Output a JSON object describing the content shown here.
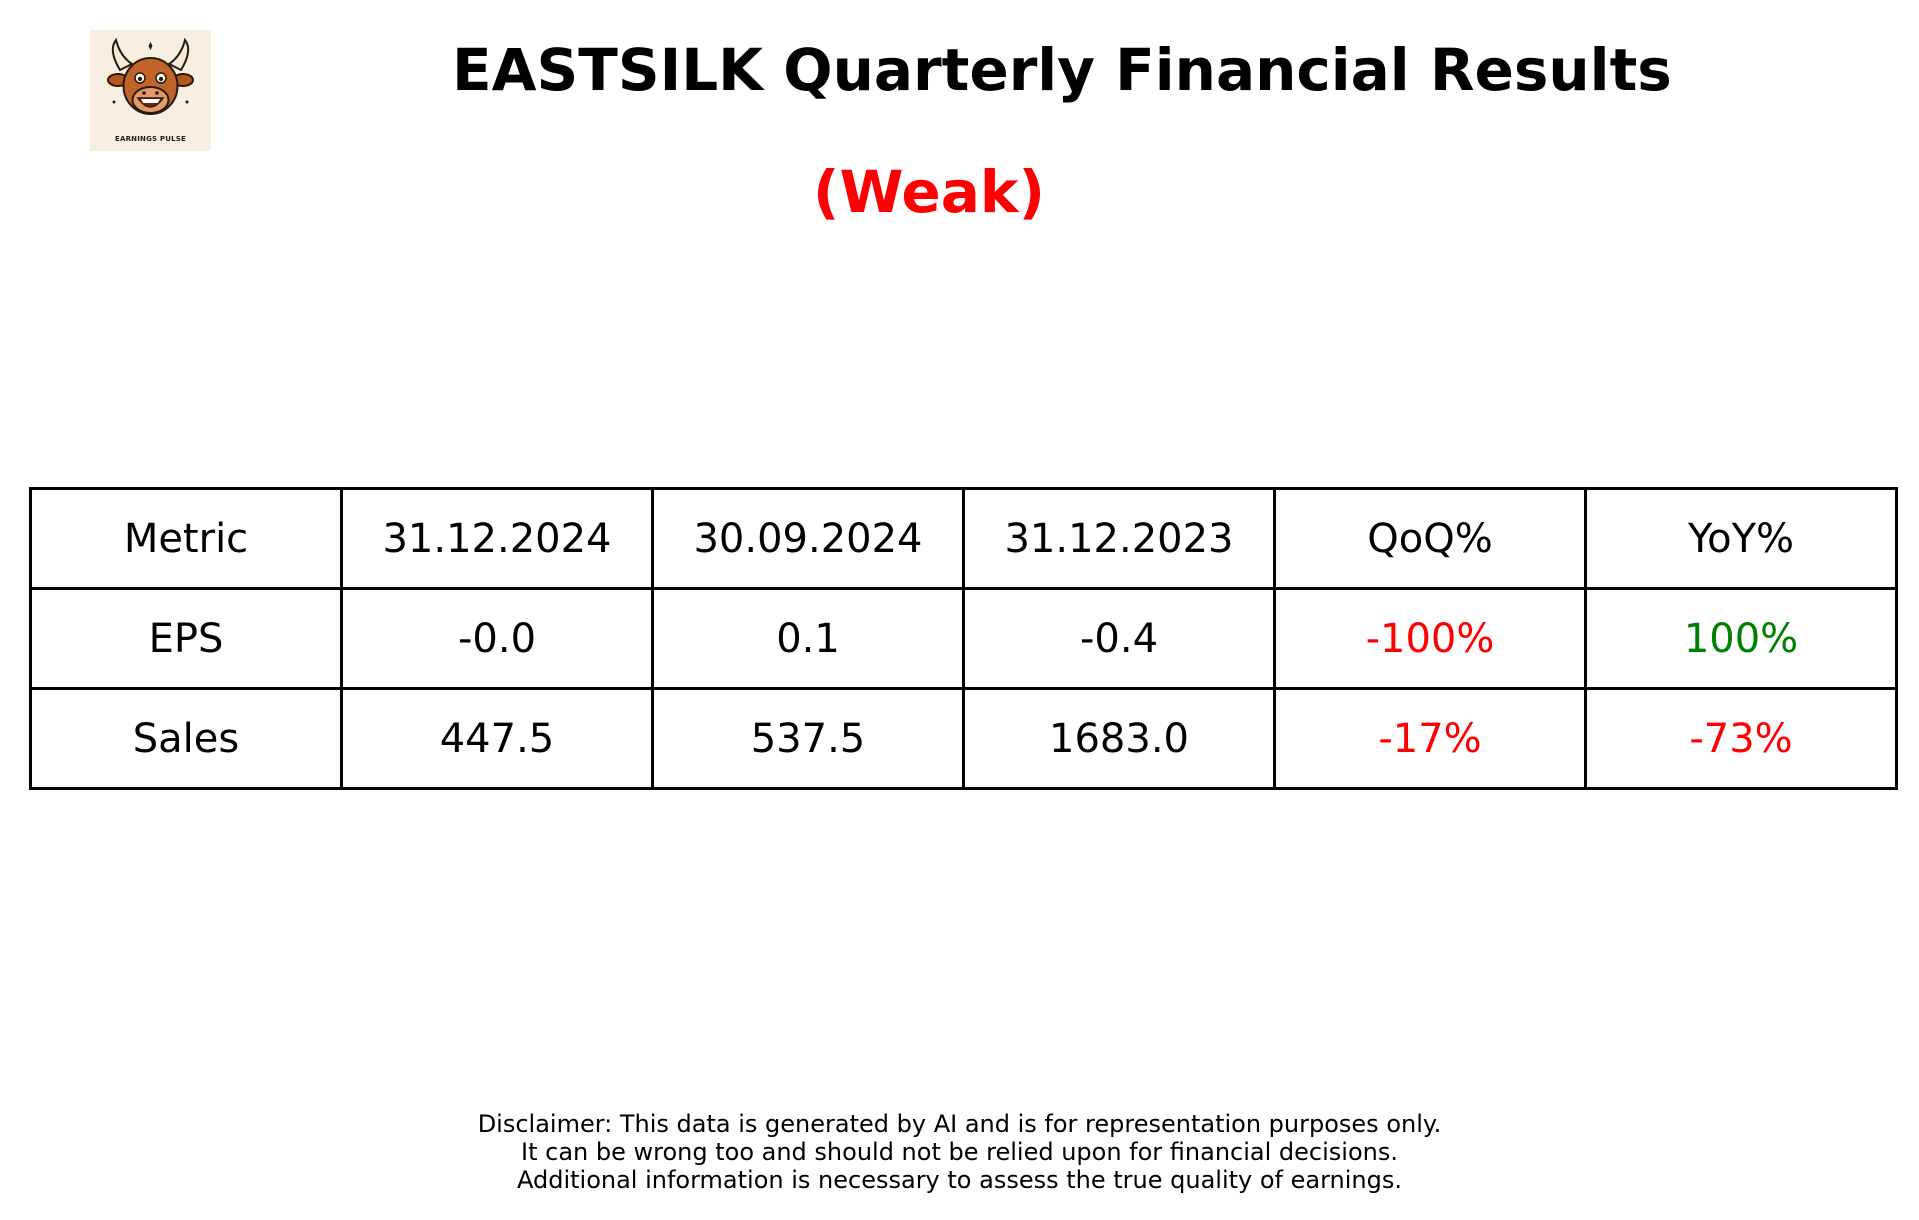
{
  "logo": {
    "icon": "bull-mascot-icon",
    "text": "EARNINGS PULSE"
  },
  "header": {
    "title": "EASTSILK Quarterly Financial Results",
    "rating": "(Weak)",
    "rating_color": "#ff0000"
  },
  "chart_data": {
    "type": "table",
    "columns": [
      "Metric",
      "31.12.2024",
      "30.09.2024",
      "31.12.2023",
      "QoQ%",
      "YoY%"
    ],
    "rows": [
      {
        "metric": "EPS",
        "q1": "-0.0",
        "q2": "0.1",
        "q3": "-0.4",
        "qoq": "-100%",
        "yoy": "100%"
      },
      {
        "metric": "Sales",
        "q1": "447.5",
        "q2": "537.5",
        "q3": "1683.0",
        "qoq": "-17%",
        "yoy": "-73%"
      }
    ],
    "colors": {
      "negative": "#ff0000",
      "positive": "#008000"
    }
  },
  "disclaimer": {
    "lines": [
      "Disclaimer: This data is generated by AI and is for representation purposes only.",
      "It can be wrong too and should not be relied upon for financial decisions.",
      "Additional information is necessary to assess the true quality of earnings."
    ]
  }
}
